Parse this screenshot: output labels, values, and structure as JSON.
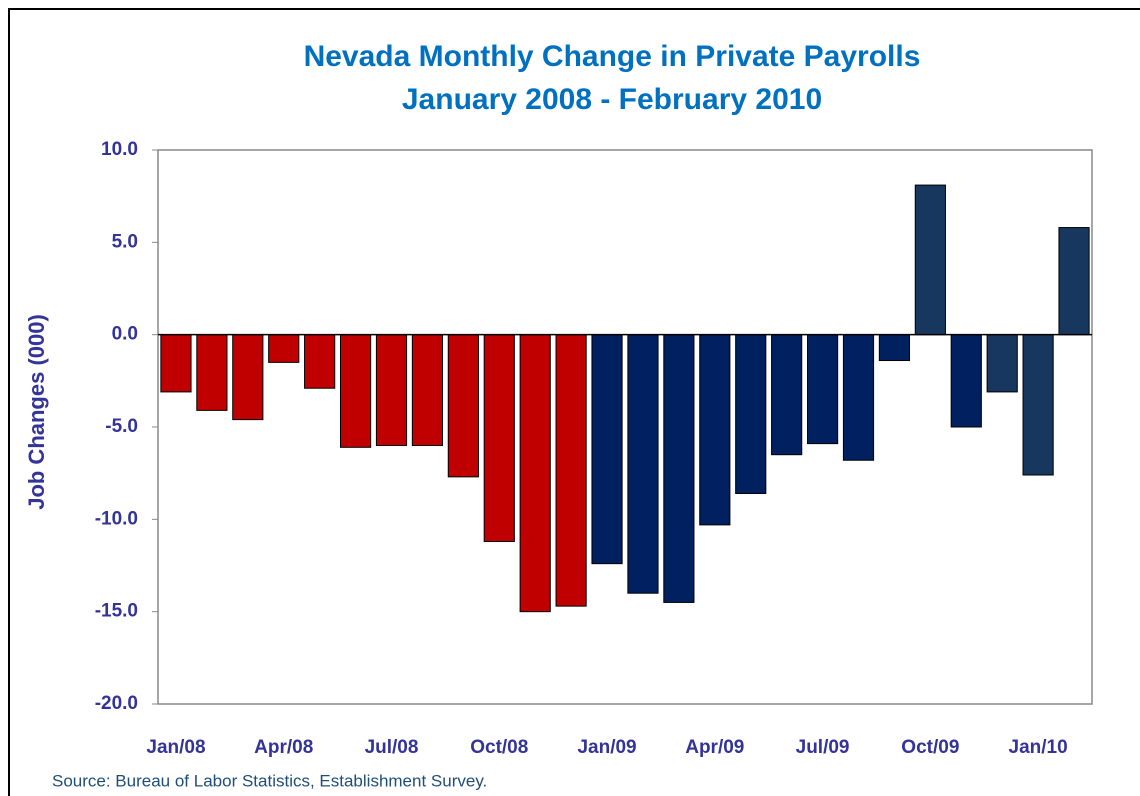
{
  "chart_data": {
    "type": "bar",
    "title": "Nevada Monthly Change in Private Payrolls",
    "subtitle": "January 2008 - February 2010",
    "y_label": "Job Changes (000)",
    "source": "Source: Bureau of Labor Statistics, Establishment Survey.",
    "categories": [
      "Jan/08",
      null,
      null,
      "Apr/08",
      null,
      null,
      "Jul/08",
      null,
      null,
      "Oct/08",
      null,
      null,
      "Jan/09",
      null,
      null,
      "Apr/09",
      null,
      null,
      "Jul/09",
      null,
      null,
      "Oct/09",
      null,
      null,
      "Jan/10",
      null
    ],
    "values": [
      -3.1,
      -4.1,
      -4.6,
      -1.5,
      -2.9,
      -6.1,
      -6.0,
      -6.0,
      -7.7,
      -11.2,
      -15.0,
      -14.7,
      -12.4,
      -14.0,
      -14.5,
      -10.3,
      -8.6,
      -6.5,
      -5.9,
      -6.8,
      -1.4,
      8.1,
      -5.0,
      -3.1,
      -7.6,
      5.8
    ],
    "colors": [
      "#c00000",
      "#c00000",
      "#c00000",
      "#c00000",
      "#c00000",
      "#c00000",
      "#c00000",
      "#c00000",
      "#c00000",
      "#c00000",
      "#c00000",
      "#c00000",
      "#002060",
      "#002060",
      "#002060",
      "#002060",
      "#002060",
      "#002060",
      "#002060",
      "#002060",
      "#002060",
      "#17375e",
      "#002060",
      "#17375e",
      "#17375e",
      "#17375e"
    ],
    "ylim": [
      -20,
      10
    ],
    "yticks": [
      {
        "value": -20,
        "label": "-20.0"
      },
      {
        "value": -15,
        "label": "-15.0"
      },
      {
        "value": -10,
        "label": "-10.0"
      },
      {
        "value": -5,
        "label": "-5.0"
      },
      {
        "value": 0,
        "label": "0.0"
      },
      {
        "value": 5,
        "label": "5.0"
      },
      {
        "value": 10,
        "label": "10.0"
      }
    ],
    "grid": false
  }
}
